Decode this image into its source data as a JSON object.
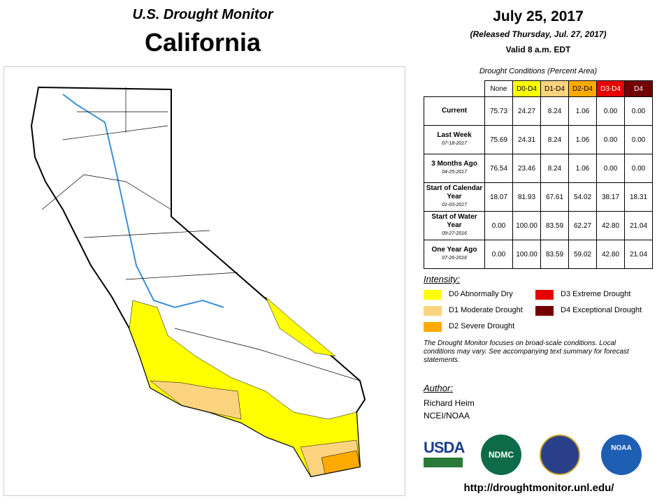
{
  "header": {
    "title": "U.S. Drought Monitor",
    "region": "California",
    "date": "July 25, 2017",
    "released": "(Released Thursday, Jul. 27, 2017)",
    "valid": "Valid 8 a.m. EDT"
  },
  "table": {
    "caption": "Drought Conditions (Percent Area)",
    "columns": [
      {
        "label": "None",
        "color": "#ffffff",
        "text": "#000000"
      },
      {
        "label": "D0-D4",
        "color": "#ffff00",
        "text": "#000000"
      },
      {
        "label": "D1-D4",
        "color": "#fcd37f",
        "text": "#000000"
      },
      {
        "label": "D2-D4",
        "color": "#ffaa00",
        "text": "#000000"
      },
      {
        "label": "D3-D4",
        "color": "#e60000",
        "text": "#ffffff"
      },
      {
        "label": "D4",
        "color": "#730000",
        "text": "#ffffff"
      }
    ],
    "rows": [
      {
        "label": "Current",
        "values": [
          "75.73",
          "24.27",
          "8.24",
          "1.06",
          "0.00",
          "0.00"
        ]
      },
      {
        "label": "Last Week",
        "date": "07-18-2017",
        "values": [
          "75.69",
          "24.31",
          "8.24",
          "1.06",
          "0.00",
          "0.00"
        ]
      },
      {
        "label": "3 Months Ago",
        "date": "04-25-2017",
        "values": [
          "76.54",
          "23.46",
          "8.24",
          "1.06",
          "0.00",
          "0.00"
        ]
      },
      {
        "label": "Start of Calendar Year",
        "date": "01-03-2017",
        "values": [
          "18.07",
          "81.93",
          "67.61",
          "54.02",
          "38.17",
          "18.31"
        ]
      },
      {
        "label": "Start of Water Year",
        "date": "09-27-2016",
        "values": [
          "0.00",
          "100.00",
          "83.59",
          "62.27",
          "42.80",
          "21.04"
        ]
      },
      {
        "label": "One Year Ago",
        "date": "07-26-2016",
        "values": [
          "0.00",
          "100.00",
          "83.59",
          "59.02",
          "42.80",
          "21.04"
        ]
      }
    ]
  },
  "legend": {
    "title": "Intensity:",
    "items": [
      {
        "label": "D0 Abnormally Dry",
        "color": "#ffff00"
      },
      {
        "label": "D3 Extreme Drought",
        "color": "#e60000"
      },
      {
        "label": "D1 Moderate Drought",
        "color": "#fcd37f"
      },
      {
        "label": "D4 Exceptional Drought",
        "color": "#730000"
      },
      {
        "label": "D2 Severe Drought",
        "color": "#ffaa00"
      }
    ]
  },
  "note": "The Drought Monitor focuses on broad-scale conditions. Local conditions may vary. See accompanying text summary for forecast statements.",
  "author": {
    "title": "Author:",
    "name": "Richard Heim",
    "org": "NCEI/NOAA"
  },
  "logos": {
    "usda": "USDA",
    "ndmc": "NDMC",
    "noaa": "NOAA"
  },
  "url": "http://droughtmonitor.unl.edu/"
}
